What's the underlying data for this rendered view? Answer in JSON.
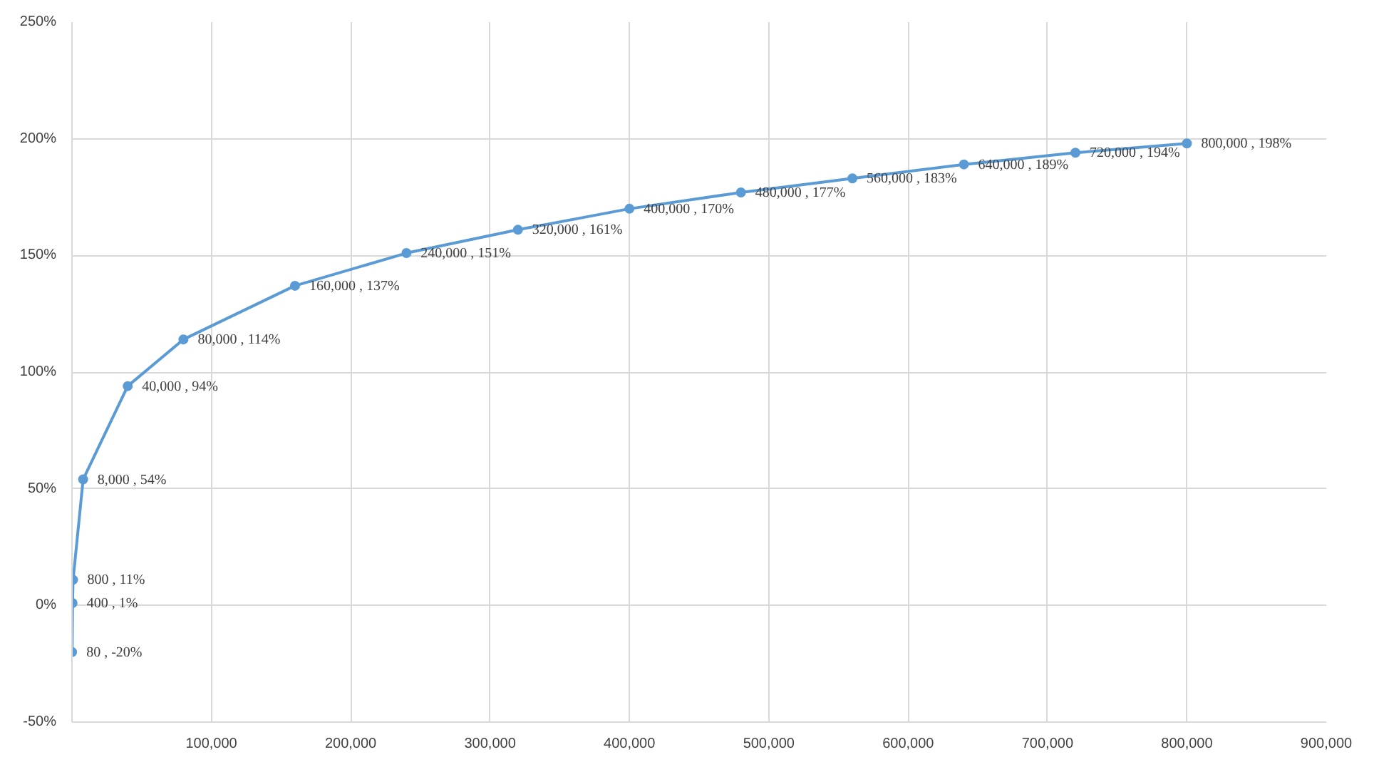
{
  "chart_data": {
    "type": "line",
    "x": [
      80,
      400,
      800,
      8000,
      40000,
      80000,
      160000,
      240000,
      320000,
      400000,
      480000,
      560000,
      640000,
      720000,
      800000
    ],
    "series": [
      {
        "color": "#5b9bd5",
        "values": [
          -20,
          1,
          11,
          54,
          94,
          114,
          137,
          151,
          161,
          170,
          177,
          183,
          189,
          194,
          198
        ],
        "value_labels": [
          "80 , -20%",
          "400 , 1%",
          "800 , 11%",
          "8,000 , 54%",
          "40,000 , 94%",
          "80,000 , 114%",
          "160,000 , 137%",
          "240,000 , 151%",
          "320,000 , 161%",
          "400,000 , 170%",
          "480,000 , 177%",
          "560,000 , 183%",
          "640,000 , 189%",
          "720,000 , 194%",
          "800,000 , 198%"
        ]
      }
    ],
    "xlim": [
      0,
      900000
    ],
    "xticks": [
      {
        "value": 0,
        "label": null
      },
      {
        "value": 100000,
        "label": "100,000"
      },
      {
        "value": 200000,
        "label": "200,000"
      },
      {
        "value": 300000,
        "label": "300,000"
      },
      {
        "value": 400000,
        "label": "400,000"
      },
      {
        "value": 500000,
        "label": "500,000"
      },
      {
        "value": 600000,
        "label": "600,000"
      },
      {
        "value": 700000,
        "label": "700,000"
      },
      {
        "value": 800000,
        "label": "800,000"
      },
      {
        "value": 900000,
        "label": "900,000"
      }
    ],
    "ylim": [
      -50,
      250
    ],
    "yticks": [
      {
        "value": -50,
        "label": "-50%"
      },
      {
        "value": 0,
        "label": "0%"
      },
      {
        "value": 50,
        "label": "50%"
      },
      {
        "value": 100,
        "label": "100%"
      },
      {
        "value": 150,
        "label": "150%"
      },
      {
        "value": 200,
        "label": "200%"
      },
      {
        "value": 250,
        "label": "250%"
      }
    ],
    "grid": true,
    "marker": "circle",
    "line_style": "solid"
  }
}
